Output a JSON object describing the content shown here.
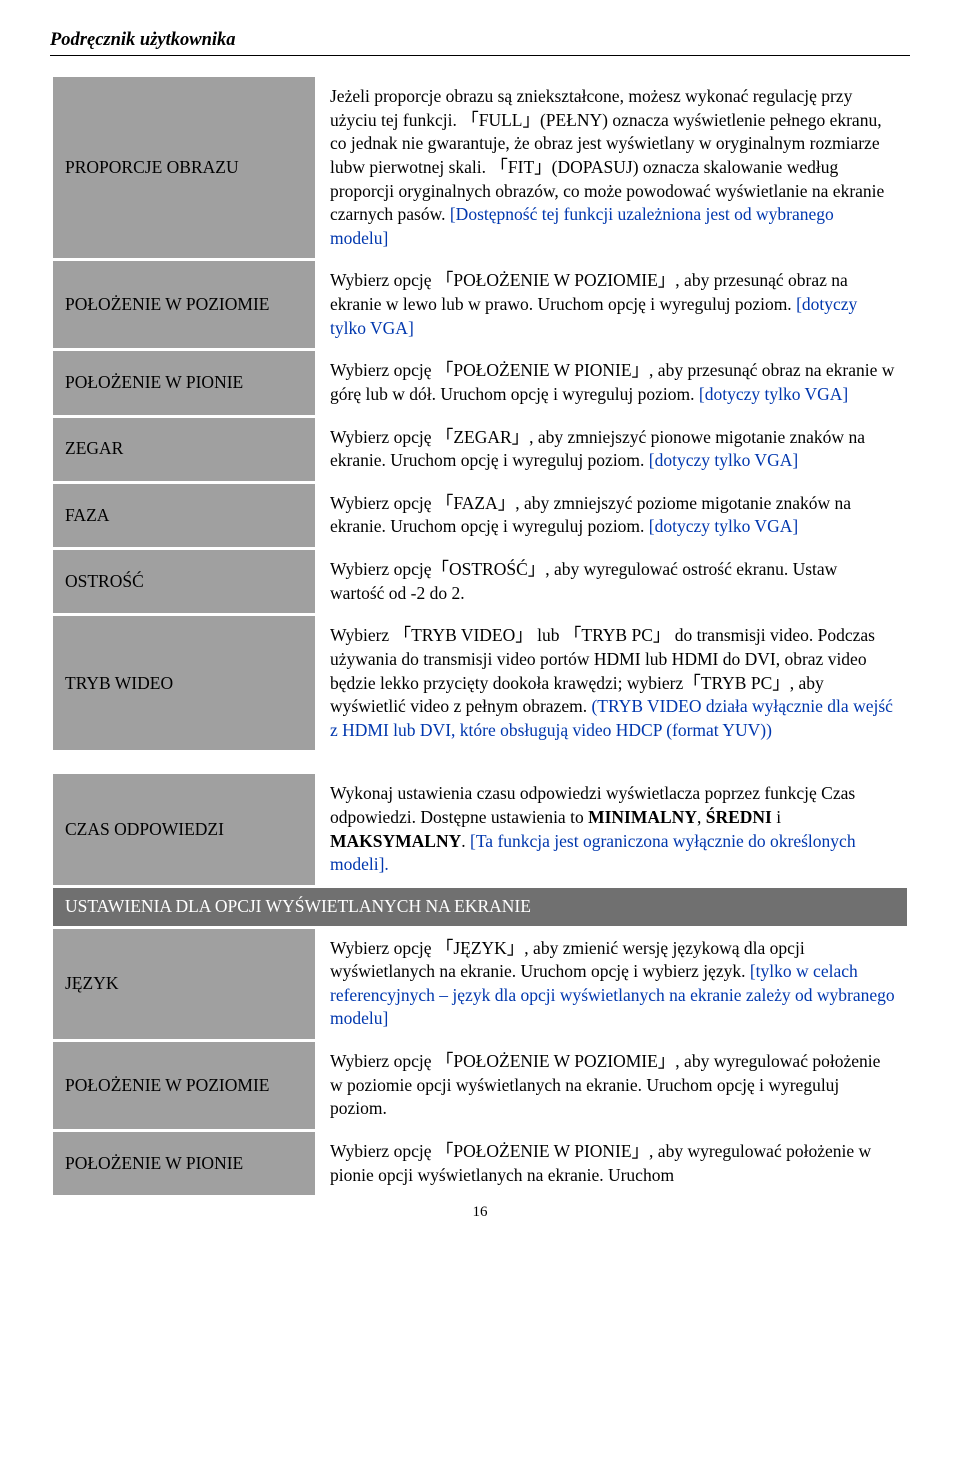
{
  "header": {
    "title": "Podręcznik użytkownika"
  },
  "rows": {
    "r1": {
      "label": "PROPORCJE OBRAZU",
      "p1a": "Jeżeli proporcje obrazu są zniekształcone, możesz wykonać regulację przy użyciu tej funkcji.",
      "full": "「FULL」(PEŁNY) oznacza wyświetlenie pełnego ekranu, co jednak nie gwarantuje, że obraz jest wyświetlany w oryginalnym rozmiarze lubw pierwotnej skali.",
      "fit": "「FIT」(DOPASUJ) oznacza skalowanie według proporcji oryginalnych obrazów, co może powodować wyświetlanie na ekranie czarnych pasów.",
      "blue": " [Dostępność tej funkcji uzależniona jest od wybranego modelu]"
    },
    "r2": {
      "label": "POŁOŻENIE W POZIOMIE",
      "text": "Wybierz opcję 「POŁOŻENIE W POZIOMIE」, aby przesunąć obraz na ekranie w lewo lub w prawo. Uruchom opcję i wyreguluj poziom.",
      "blue": " [dotyczy tylko VGA]"
    },
    "r3": {
      "label": "POŁOŻENIE W PIONIE",
      "text": "Wybierz opcję 「POŁOŻENIE W PIONIE」, aby przesunąć obraz na ekranie w górę lub w dół. Uruchom opcję i wyreguluj poziom.",
      "blue": " [dotyczy tylko VGA]"
    },
    "r4": {
      "label": "ZEGAR",
      "text": "Wybierz opcję 「ZEGAR」, aby zmniejszyć pionowe migotanie znaków na ekranie. Uruchom opcję i wyreguluj poziom. ",
      "blue": "[dotyczy tylko VGA]"
    },
    "r5": {
      "label": "FAZA",
      "text": "Wybierz opcję 「FAZA」, aby zmniejszyć poziome migotanie znaków na ekranie. Uruchom opcję i wyreguluj poziom. ",
      "blue": "[dotyczy tylko VGA]"
    },
    "r6": {
      "label": "OSTROŚĆ",
      "text": "Wybierz opcję「OSTROŚĆ」, aby wyregulować ostrość ekranu. Ustaw wartość od -2 do 2."
    },
    "r7": {
      "label": "TRYB WIDEO",
      "text": "Wybierz 「TRYB VIDEO」 lub 「TRYB PC」 do transmisji video. Podczas używania do transmisji video portów HDMI lub HDMI do DVI, obraz video będzie lekko przycięty dookoła krawędzi; wybierz「TRYB PC」, aby wyświetlić video z pełnym obrazem.",
      "blue": " (TRYB VIDEO działa wyłącznie dla wejść z HDMI lub DVI, które obsługują video HDCP (format YUV))"
    },
    "r8": {
      "label": "CZAS ODPOWIEDZI",
      "pre": "Wykonaj ustawienia czasu odpowiedzi wyświetlacza poprzez funkcję Czas odpowiedzi. Dostępne ustawienia to ",
      "bold": "MINIMALNY",
      "mid1": ", ",
      "bold2": "ŚREDNI",
      "mid2": " i ",
      "bold3": "MAKSYMALNY",
      "post": ".",
      "blue": " [Ta funkcja jest ograniczona wyłącznie do określonych modeli]."
    },
    "section": "USTAWIENIA DLA OPCJI WYŚWIETLANYCH NA EKRANIE",
    "r9": {
      "label": "JĘZYK",
      "text": "Wybierz opcję 「JĘZYK」, aby zmienić wersję językową dla opcji wyświetlanych na ekranie. Uruchom opcję i wybierz język. ",
      "blue": "[tylko w celach referencyjnych – język dla opcji wyświetlanych na ekranie zależy od wybranego modelu]"
    },
    "r10": {
      "label": "POŁOŻENIE W POZIOMIE",
      "text": "Wybierz opcję 「POŁOŻENIE W POZIOMIE」, aby wyregulować położenie w poziomie opcji wyświetlanych na ekranie. Uruchom opcję i wyreguluj poziom."
    },
    "r11": {
      "label": "POŁOŻENIE W PIONIE",
      "text": "Wybierz opcję 「POŁOŻENIE W PIONIE」, aby wyregulować położenie w pionie opcji wyświetlanych na ekranie. Uruchom"
    }
  },
  "page": "16"
}
